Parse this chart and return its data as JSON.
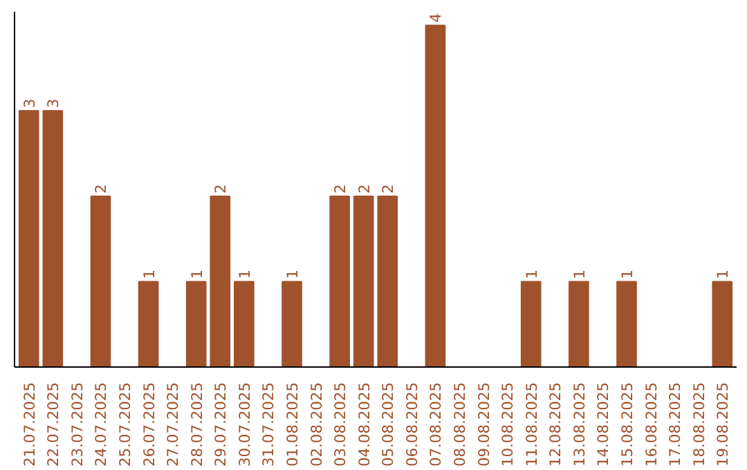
{
  "chart_data": {
    "type": "bar",
    "categories": [
      "21.07.2025",
      "22.07.2025",
      "23.07.2025",
      "24.07.2025",
      "25.07.2025",
      "26.07.2025",
      "27.07.2025",
      "28.07.2025",
      "29.07.2025",
      "30.07.2025",
      "31.07.2025",
      "01.08.2025",
      "02.08.2025",
      "03.08.2025",
      "04.08.2025",
      "05.08.2025",
      "06.08.2025",
      "07.08.2025",
      "08.08.2025",
      "09.08.2025",
      "10.08.2025",
      "11.08.2025",
      "12.08.2025",
      "13.08.2025",
      "14.08.2025",
      "15.08.2025",
      "16.08.2025",
      "17.08.2025",
      "18.08.2025",
      "19.08.2025"
    ],
    "values": [
      3,
      3,
      0,
      2,
      0,
      1,
      0,
      1,
      2,
      1,
      0,
      1,
      0,
      2,
      2,
      2,
      0,
      4,
      0,
      0,
      0,
      1,
      0,
      1,
      0,
      1,
      0,
      0,
      0,
      1
    ],
    "value_labels": [
      "3",
      "3",
      null,
      "2",
      null,
      "1",
      null,
      "1",
      "2",
      "1",
      null,
      "1",
      null,
      "2",
      "2",
      "2",
      null,
      "4",
      null,
      null,
      null,
      "1",
      null,
      "1",
      null,
      "1",
      null,
      null,
      null,
      "1"
    ],
    "color": "#a0522d"
  }
}
